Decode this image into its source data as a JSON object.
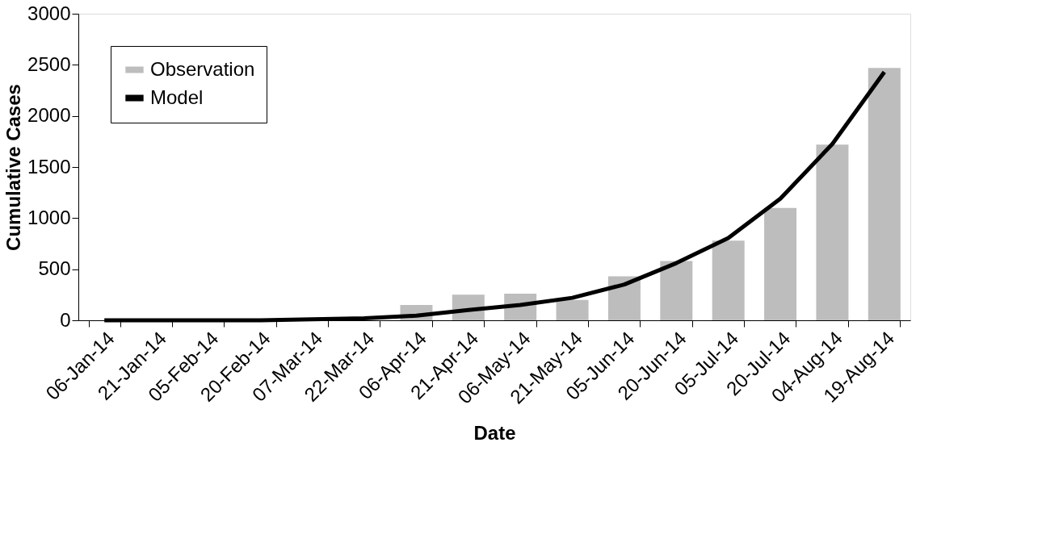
{
  "chart_data": {
    "type": "bar",
    "xlabel": "Date",
    "ylabel": "Cumulative Cases",
    "categories": [
      "06-Jan-14",
      "21-Jan-14",
      "05-Feb-14",
      "20-Feb-14",
      "07-Mar-14",
      "22-Mar-14",
      "06-Apr-14",
      "21-Apr-14",
      "06-May-14",
      "21-May-14",
      "05-Jun-14",
      "20-Jun-14",
      "05-Jul-14",
      "20-Jul-14",
      "04-Aug-14",
      "19-Aug-14"
    ],
    "series": [
      {
        "name": "Observation",
        "color": "#bdbdbd",
        "values": [
          null,
          null,
          null,
          null,
          null,
          null,
          150,
          250,
          260,
          200,
          430,
          580,
          780,
          1100,
          1720,
          2470
        ]
      },
      {
        "name": "Model",
        "type": "line",
        "color": "#000000",
        "values": [
          0,
          0,
          0,
          0,
          10,
          20,
          45,
          100,
          150,
          220,
          350,
          560,
          805,
          1190,
          1725,
          2430
        ]
      }
    ],
    "ylim": [
      0,
      3000
    ],
    "yticks": [
      0,
      500,
      1000,
      1500,
      2000,
      2500,
      3000
    ],
    "grid": false,
    "legend": "top left"
  }
}
